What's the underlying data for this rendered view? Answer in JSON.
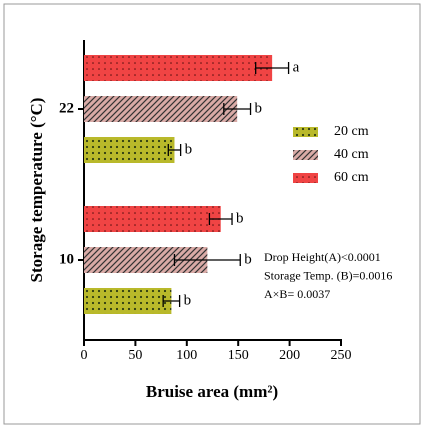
{
  "chart_data": {
    "type": "bar",
    "orientation": "horizontal",
    "x_label": "Bruise area (mm²)",
    "y_label": "Storage temperature (°C)",
    "categories": [
      "10",
      "22"
    ],
    "series": [
      {
        "name": "20 cm",
        "color": "#b9b92a",
        "values": [
          85,
          88
        ],
        "errors": [
          8,
          6
        ],
        "labels": [
          "b",
          "b"
        ]
      },
      {
        "name": "40 cm",
        "color": "#d9aaa6",
        "values": [
          120,
          149
        ],
        "errors": [
          32,
          13
        ],
        "labels": [
          "b",
          "b"
        ]
      },
      {
        "name": "60 cm",
        "color": "#f04444",
        "values": [
          133,
          183
        ],
        "errors": [
          11,
          16
        ],
        "labels": [
          "b",
          "a"
        ]
      }
    ],
    "xlim": [
      0,
      250
    ],
    "xticks": [
      0,
      50,
      100,
      150,
      200,
      250
    ],
    "annotations": [
      "Drop Height(A)<0.0001",
      "Storage Temp. (B)=0.0016",
      "A×B= 0.0037"
    ]
  }
}
